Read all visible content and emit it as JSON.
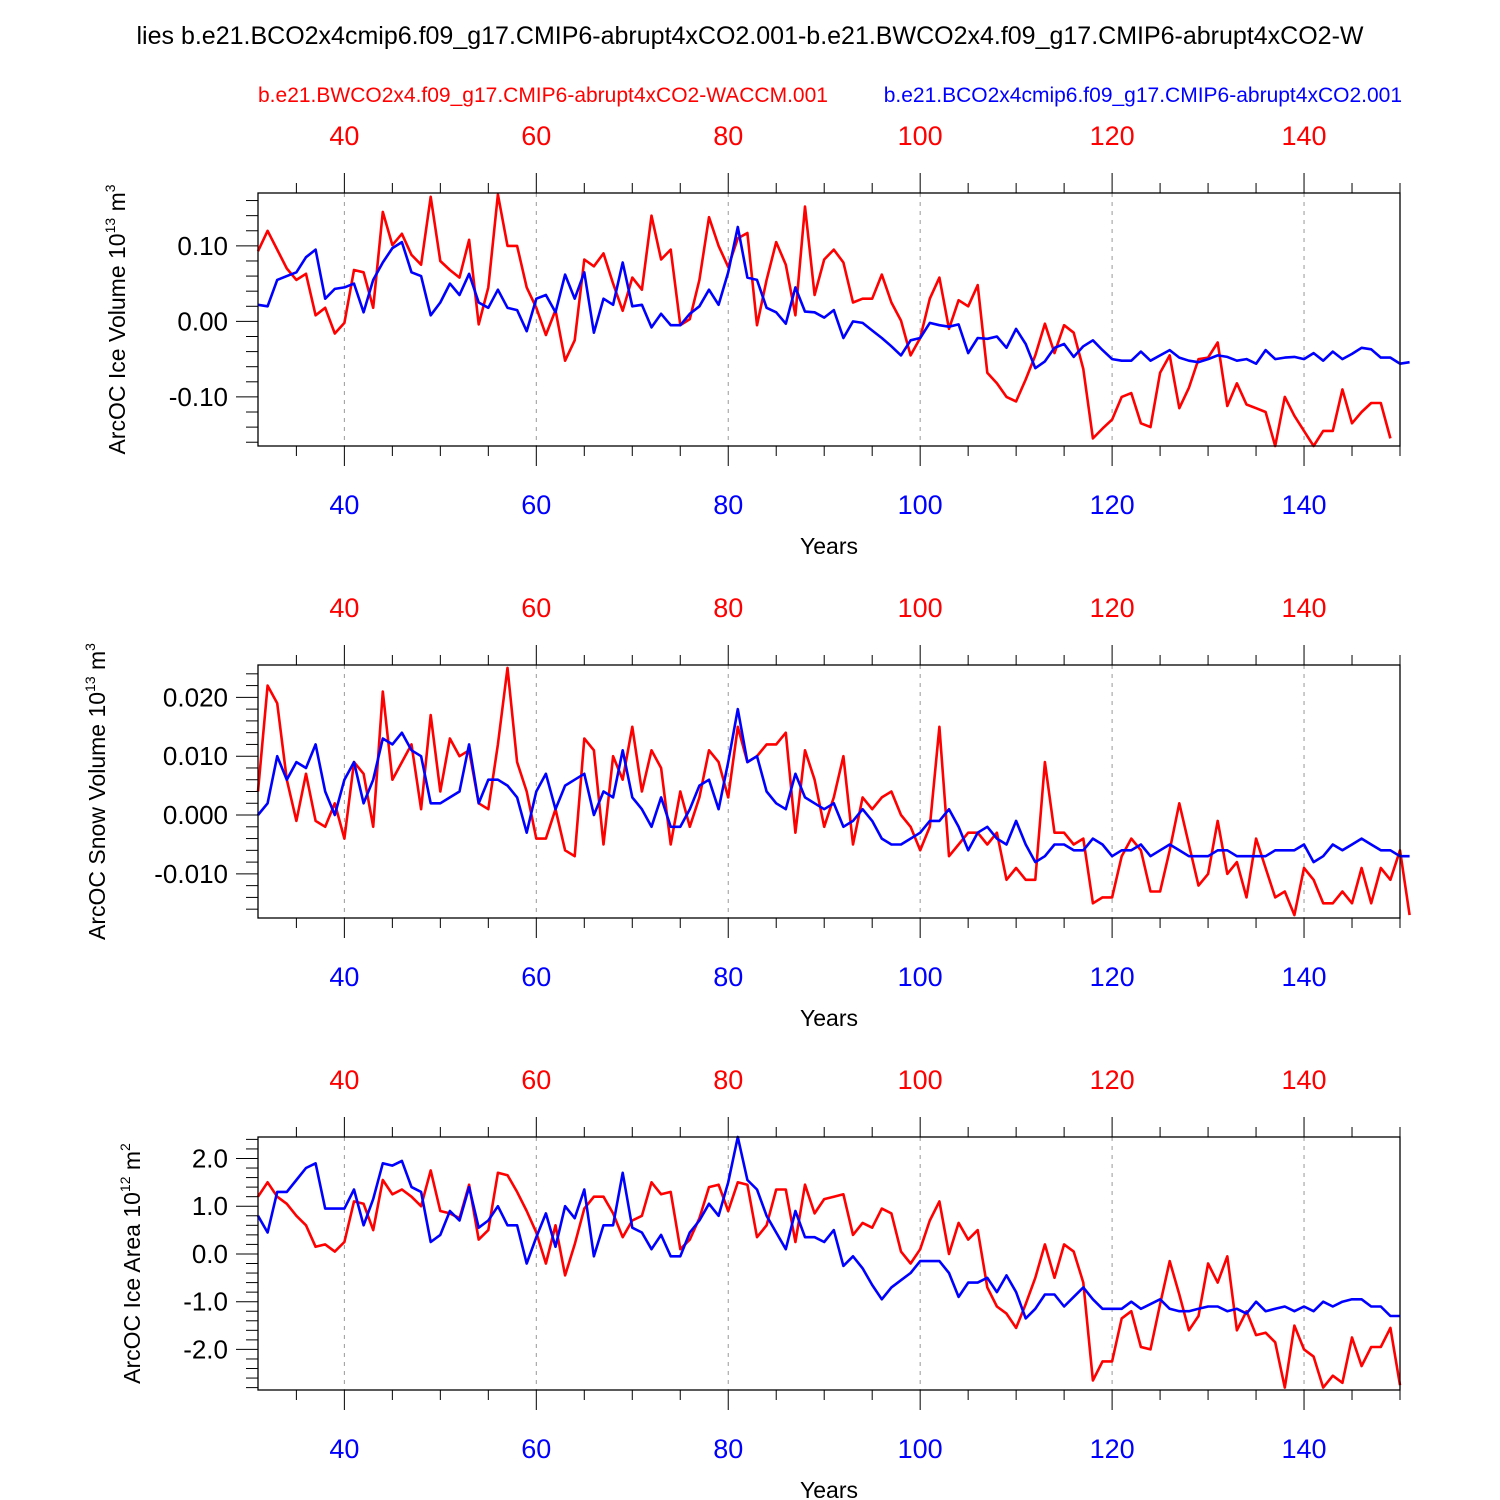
{
  "title": "lies b.e21.BCO2x4cmip6.f09_g17.CMIP6-abrupt4xCO2.001-b.e21.BWCO2x4.f09_g17.CMIP6-abrupt4xCO2-W",
  "colors": {
    "run_red": "#ff0000",
    "run_blue": "#0000ff",
    "grid": "#999999",
    "axis": "#000000"
  },
  "chart_data": [
    {
      "type": "line",
      "ylabel": "ArcOC Ice Volume 10",
      "ylabel_exp": "13",
      "ylabel_unit": " m",
      "ylabel_unit_exp": "3",
      "xlabel": "Years",
      "top_legend_red": "b.e21.BWCO2x4.f09_g17.CMIP6-abrupt4xCO2-WACCM.001",
      "top_legend_blue": "b.e21.BCO2x4cmip6.f09_g17.CMIP6-abrupt4xCO2.001",
      "xlim": [
        31,
        150
      ],
      "ylim": [
        -0.165,
        0.17
      ],
      "xticks": [
        40,
        60,
        80,
        100,
        120,
        140
      ],
      "xtick_labels": [
        "40",
        "60",
        "80",
        "100",
        "120",
        "140"
      ],
      "yticks": [
        -0.1,
        0.0,
        0.1
      ],
      "ytick_labels": [
        "-0.10",
        "0.00",
        "0.10"
      ],
      "x_start": 31,
      "series": [
        {
          "name": "b.e21.BWCO2x4.f09_g17.CMIP6-abrupt4xCO2-WACCM.001",
          "color": "#ff0000",
          "values": [
            0.093,
            0.12,
            0.095,
            0.07,
            0.055,
            0.063,
            0.008,
            0.018,
            -0.016,
            -0.002,
            0.068,
            0.065,
            0.018,
            0.145,
            0.101,
            0.116,
            0.088,
            0.075,
            0.165,
            0.08,
            0.068,
            0.058,
            0.108,
            -0.004,
            0.045,
            0.168,
            0.1,
            0.1,
            0.045,
            0.018,
            -0.018,
            0.015,
            -0.052,
            -0.025,
            0.082,
            0.073,
            0.09,
            0.05,
            0.014,
            0.058,
            0.042,
            0.14,
            0.082,
            0.095,
            -0.005,
            0.003,
            0.055,
            0.138,
            0.1,
            0.072,
            0.11,
            0.117,
            -0.005,
            0.055,
            0.105,
            0.075,
            0.008,
            0.152,
            0.035,
            0.082,
            0.095,
            0.078,
            0.025,
            0.03,
            0.03,
            0.062,
            0.025,
            0.001,
            -0.045,
            -0.022,
            0.03,
            0.058,
            -0.01,
            0.028,
            0.02,
            0.048,
            -0.068,
            -0.082,
            -0.1,
            -0.106,
            -0.077,
            -0.045,
            -0.003,
            -0.042,
            -0.005,
            -0.015,
            -0.063,
            -0.155,
            -0.142,
            -0.13,
            -0.1,
            -0.095,
            -0.135,
            -0.14,
            -0.068,
            -0.045,
            -0.115,
            -0.088,
            -0.05,
            -0.048,
            -0.028,
            -0.112,
            -0.082,
            -0.11,
            -0.115,
            -0.12,
            -0.165,
            -0.1,
            -0.125,
            -0.145,
            -0.165,
            -0.145,
            -0.145,
            -0.09,
            -0.135,
            -0.12,
            -0.108,
            -0.108,
            -0.155
          ]
        },
        {
          "name": "b.e21.BCO2x4cmip6.f09_g17.CMIP6-abrupt4xCO2.001",
          "color": "#0000ff",
          "values": [
            0.022,
            0.02,
            0.055,
            0.06,
            0.065,
            0.085,
            0.095,
            0.03,
            0.043,
            0.045,
            0.05,
            0.012,
            0.055,
            0.078,
            0.097,
            0.105,
            0.065,
            0.06,
            0.008,
            0.025,
            0.05,
            0.035,
            0.063,
            0.025,
            0.018,
            0.042,
            0.018,
            0.015,
            -0.013,
            0.03,
            0.035,
            0.012,
            0.062,
            0.03,
            0.065,
            -0.015,
            0.03,
            0.022,
            0.078,
            0.02,
            0.022,
            -0.008,
            0.01,
            -0.005,
            -0.005,
            0.01,
            0.02,
            0.042,
            0.022,
            0.065,
            0.125,
            0.058,
            0.055,
            0.018,
            0.012,
            -0.003,
            0.045,
            0.013,
            0.012,
            0.005,
            0.015,
            -0.022,
            0.0,
            -0.002,
            -0.012,
            -0.022,
            -0.033,
            -0.045,
            -0.025,
            -0.022,
            -0.002,
            -0.005,
            -0.007,
            -0.004,
            -0.042,
            -0.022,
            -0.023,
            -0.02,
            -0.035,
            -0.01,
            -0.03,
            -0.062,
            -0.053,
            -0.035,
            -0.03,
            -0.047,
            -0.033,
            -0.025,
            -0.038,
            -0.05,
            -0.052,
            -0.052,
            -0.04,
            -0.052,
            -0.045,
            -0.038,
            -0.048,
            -0.052,
            -0.054,
            -0.05,
            -0.045,
            -0.047,
            -0.052,
            -0.05,
            -0.056,
            -0.038,
            -0.05,
            -0.048,
            -0.047,
            -0.05,
            -0.042,
            -0.052,
            -0.04,
            -0.05,
            -0.043,
            -0.035,
            -0.037,
            -0.048,
            -0.048,
            -0.056,
            -0.054
          ]
        }
      ]
    },
    {
      "type": "line",
      "ylabel": "ArcOC Snow Volume 10",
      "ylabel_exp": "13",
      "ylabel_unit": " m",
      "ylabel_unit_exp": "3",
      "xlabel": "Years",
      "xlim": [
        31,
        150
      ],
      "ylim": [
        -0.0175,
        0.0255
      ],
      "xticks": [
        40,
        60,
        80,
        100,
        120,
        140
      ],
      "xtick_labels": [
        "40",
        "60",
        "80",
        "100",
        "120",
        "140"
      ],
      "yticks": [
        -0.01,
        0.0,
        0.01,
        0.02
      ],
      "ytick_labels": [
        "-0.010",
        "0.000",
        "0.010",
        "0.020"
      ],
      "x_start": 31,
      "series": [
        {
          "name": "b.e21.BWCO2x4.f09_g17.CMIP6-abrupt4xCO2-WACCM.001",
          "color": "#ff0000",
          "values": [
            0.004,
            0.022,
            0.019,
            0.006,
            -0.001,
            0.007,
            -0.001,
            -0.002,
            0.002,
            -0.004,
            0.009,
            0.007,
            -0.002,
            0.021,
            0.006,
            0.009,
            0.012,
            0.001,
            0.017,
            0.004,
            0.013,
            0.01,
            0.011,
            0.002,
            0.001,
            0.012,
            0.025,
            0.009,
            0.004,
            -0.004,
            -0.004,
            0.001,
            -0.006,
            -0.007,
            0.013,
            0.011,
            -0.005,
            0.01,
            0.006,
            0.015,
            0.004,
            0.011,
            0.008,
            -0.005,
            0.004,
            -0.002,
            0.003,
            0.011,
            0.009,
            0.003,
            0.015,
            0.009,
            0.01,
            0.012,
            0.012,
            0.014,
            -0.003,
            0.011,
            0.006,
            -0.002,
            0.003,
            0.01,
            -0.005,
            0.003,
            0.001,
            0.003,
            0.004,
            0.0,
            -0.002,
            -0.006,
            -0.002,
            0.015,
            -0.007,
            -0.005,
            -0.003,
            -0.003,
            -0.005,
            -0.003,
            -0.011,
            -0.009,
            -0.011,
            -0.011,
            0.009,
            -0.003,
            -0.003,
            -0.005,
            -0.004,
            -0.015,
            -0.014,
            -0.014,
            -0.007,
            -0.004,
            -0.006,
            -0.013,
            -0.013,
            -0.006,
            0.002,
            -0.005,
            -0.012,
            -0.01,
            -0.001,
            -0.01,
            -0.008,
            -0.014,
            -0.004,
            -0.009,
            -0.014,
            -0.013,
            -0.017,
            -0.009,
            -0.011,
            -0.015,
            -0.015,
            -0.013,
            -0.015,
            -0.009,
            -0.015,
            -0.009,
            -0.011,
            -0.006,
            -0.017
          ]
        },
        {
          "name": "b.e21.BCO2x4cmip6.f09_g17.CMIP6-abrupt4xCO2.001",
          "color": "#0000ff",
          "values": [
            0.0,
            0.002,
            0.01,
            0.006,
            0.009,
            0.008,
            0.012,
            0.004,
            0.0,
            0.006,
            0.009,
            0.002,
            0.006,
            0.013,
            0.012,
            0.014,
            0.011,
            0.01,
            0.002,
            0.002,
            0.003,
            0.004,
            0.012,
            0.002,
            0.006,
            0.006,
            0.005,
            0.003,
            -0.003,
            0.004,
            0.007,
            0.001,
            0.005,
            0.006,
            0.007,
            0.0,
            0.004,
            0.003,
            0.011,
            0.003,
            0.001,
            -0.002,
            0.003,
            -0.002,
            -0.002,
            0.001,
            0.005,
            0.006,
            0.001,
            0.009,
            0.018,
            0.009,
            0.01,
            0.004,
            0.002,
            0.001,
            0.007,
            0.003,
            0.002,
            0.001,
            0.002,
            -0.002,
            -0.001,
            0.001,
            -0.001,
            -0.004,
            -0.005,
            -0.005,
            -0.004,
            -0.003,
            -0.001,
            -0.001,
            0.001,
            -0.002,
            -0.006,
            -0.003,
            -0.002,
            -0.004,
            -0.005,
            -0.001,
            -0.005,
            -0.008,
            -0.007,
            -0.005,
            -0.005,
            -0.006,
            -0.006,
            -0.004,
            -0.005,
            -0.007,
            -0.006,
            -0.006,
            -0.005,
            -0.007,
            -0.006,
            -0.005,
            -0.006,
            -0.007,
            -0.007,
            -0.007,
            -0.006,
            -0.006,
            -0.007,
            -0.007,
            -0.007,
            -0.007,
            -0.006,
            -0.006,
            -0.006,
            -0.005,
            -0.008,
            -0.007,
            -0.005,
            -0.006,
            -0.005,
            -0.004,
            -0.005,
            -0.006,
            -0.006,
            -0.007,
            -0.007
          ]
        }
      ]
    },
    {
      "type": "line",
      "ylabel": "ArcOC Ice Area 10",
      "ylabel_exp": "12",
      "ylabel_unit": " m",
      "ylabel_unit_exp": "2",
      "xlabel": "Years",
      "xlim": [
        31,
        150
      ],
      "ylim": [
        -2.85,
        2.45
      ],
      "xticks": [
        40,
        60,
        80,
        100,
        120,
        140
      ],
      "xtick_labels": [
        "40",
        "60",
        "80",
        "100",
        "120",
        "140"
      ],
      "yticks": [
        -2.0,
        -1.0,
        0.0,
        1.0,
        2.0
      ],
      "ytick_labels": [
        "-2.0",
        "-1.0",
        "0.0",
        "1.0",
        "2.0"
      ],
      "x_start": 31,
      "series": [
        {
          "name": "b.e21.BWCO2x4.f09_g17.CMIP6-abrupt4xCO2-WACCM.001",
          "color": "#ff0000",
          "values": [
            1.2,
            1.5,
            1.2,
            1.05,
            0.8,
            0.6,
            0.15,
            0.2,
            0.05,
            0.25,
            1.1,
            1.05,
            0.5,
            1.55,
            1.25,
            1.35,
            1.2,
            1.0,
            1.75,
            0.9,
            0.85,
            0.75,
            1.45,
            0.3,
            0.5,
            1.7,
            1.65,
            1.3,
            0.9,
            0.45,
            -0.2,
            0.6,
            -0.45,
            0.2,
            0.95,
            1.2,
            1.2,
            0.85,
            0.35,
            0.7,
            0.8,
            1.5,
            1.25,
            1.3,
            0.1,
            0.3,
            0.75,
            1.4,
            1.45,
            0.9,
            1.5,
            1.45,
            0.35,
            0.6,
            1.35,
            1.35,
            0.25,
            1.45,
            0.85,
            1.15,
            1.2,
            1.25,
            0.4,
            0.65,
            0.55,
            0.95,
            0.85,
            0.05,
            -0.2,
            0.1,
            0.7,
            1.1,
            0.0,
            0.65,
            0.3,
            0.5,
            -0.7,
            -1.1,
            -1.25,
            -1.55,
            -1.05,
            -0.5,
            0.2,
            -0.5,
            0.2,
            0.05,
            -0.6,
            -2.65,
            -2.25,
            -2.25,
            -1.35,
            -1.2,
            -1.95,
            -2.0,
            -1.05,
            -0.15,
            -0.85,
            -1.6,
            -1.3,
            -0.2,
            -0.6,
            -0.05,
            -1.6,
            -1.2,
            -1.7,
            -1.65,
            -1.85,
            -2.8,
            -1.5,
            -2.0,
            -2.15,
            -2.8,
            -2.55,
            -2.7,
            -1.75,
            -2.35,
            -1.95,
            -1.95,
            -1.55,
            -2.75
          ]
        },
        {
          "name": "b.e21.BCO2x4cmip6.f09_g17.CMIP6-abrupt4xCO2.001",
          "color": "#0000ff",
          "values": [
            0.8,
            0.45,
            1.3,
            1.3,
            1.55,
            1.8,
            1.9,
            0.95,
            0.95,
            0.95,
            1.35,
            0.6,
            1.15,
            1.9,
            1.85,
            1.95,
            1.4,
            1.3,
            0.25,
            0.4,
            0.9,
            0.7,
            1.4,
            0.55,
            0.7,
            1.0,
            0.6,
            0.6,
            -0.2,
            0.35,
            0.85,
            0.15,
            1.0,
            0.75,
            1.35,
            -0.05,
            0.6,
            0.6,
            1.7,
            0.55,
            0.45,
            0.1,
            0.4,
            -0.05,
            -0.05,
            0.45,
            0.7,
            1.05,
            0.8,
            1.5,
            2.45,
            1.55,
            1.35,
            0.8,
            0.45,
            0.1,
            0.9,
            0.35,
            0.35,
            0.25,
            0.5,
            -0.25,
            -0.05,
            -0.3,
            -0.65,
            -0.95,
            -0.7,
            -0.55,
            -0.4,
            -0.15,
            -0.15,
            -0.15,
            -0.4,
            -0.9,
            -0.6,
            -0.6,
            -0.5,
            -0.8,
            -0.45,
            -0.8,
            -1.35,
            -1.15,
            -0.85,
            -0.85,
            -1.1,
            -0.9,
            -0.7,
            -0.95,
            -1.15,
            -1.15,
            -1.15,
            -1.0,
            -1.15,
            -1.05,
            -0.95,
            -1.15,
            -1.2,
            -1.2,
            -1.15,
            -1.1,
            -1.1,
            -1.2,
            -1.15,
            -1.25,
            -1.0,
            -1.2,
            -1.15,
            -1.1,
            -1.2,
            -1.1,
            -1.2,
            -1.0,
            -1.1,
            -1.0,
            -0.95,
            -0.95,
            -1.1,
            -1.1,
            -1.3,
            -1.3
          ]
        }
      ]
    }
  ]
}
